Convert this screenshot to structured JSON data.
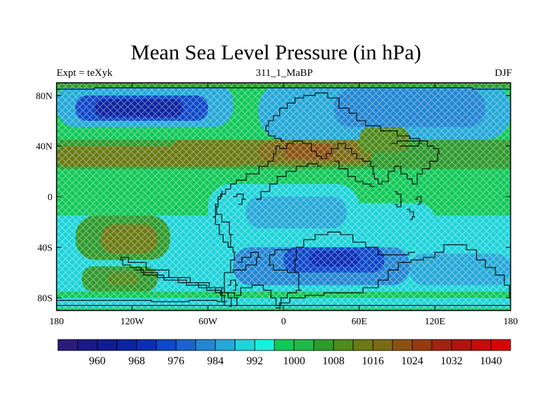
{
  "title": "Mean Sea Level Pressure (in hPa)",
  "subtitle_left": "Expt = teXyk",
  "subtitle_center": "311_1_MaBP",
  "subtitle_right": "DJF",
  "chart_data": {
    "type": "heatmap",
    "title": "Mean Sea Level Pressure (in hPa)",
    "x_ticks": [
      {
        "value": -180,
        "label": "180"
      },
      {
        "value": -120,
        "label": "120W"
      },
      {
        "value": -60,
        "label": "60W"
      },
      {
        "value": 0,
        "label": "0"
      },
      {
        "value": 60,
        "label": "60E"
      },
      {
        "value": 120,
        "label": "120E"
      },
      {
        "value": 180,
        "label": "180"
      }
    ],
    "y_ticks": [
      {
        "value": 80,
        "label": "80N"
      },
      {
        "value": 40,
        "label": "40N"
      },
      {
        "value": 0,
        "label": "0"
      },
      {
        "value": -40,
        "label": "40S"
      },
      {
        "value": -80,
        "label": "80S"
      }
    ],
    "xlim": [
      -180,
      180
    ],
    "ylim": [
      -90,
      90
    ],
    "colorbar": {
      "min": 956,
      "step": 4,
      "labeled_levels": [
        960,
        968,
        976,
        984,
        992,
        1000,
        1008,
        1016,
        1024,
        1032,
        1040
      ],
      "colors": [
        "#2b1a7a",
        "#1a1a86",
        "#121c92",
        "#0d24a0",
        "#0b2eb4",
        "#0f48c8",
        "#1a63cc",
        "#2286d2",
        "#24a8d8",
        "#1ed4da",
        "#18f0dc",
        "#10c858",
        "#20b84a",
        "#2e9a2c",
        "#4e8a1c",
        "#6a7a14",
        "#7a6a14",
        "#8a5210",
        "#963a10",
        "#a02410",
        "#b01410",
        "#c40c0c",
        "#d80404"
      ]
    },
    "regions": [
      {
        "desc": "global background",
        "lon": [
          -180,
          180
        ],
        "lat": [
          -90,
          90
        ],
        "value": 997
      },
      {
        "desc": "southern mid-lat band",
        "lon": [
          -180,
          180
        ],
        "lat": [
          -75,
          -15
        ],
        "value": 990
      },
      {
        "desc": "Antarctic coast",
        "lon": [
          -180,
          180
        ],
        "lat": [
          -88,
          -80
        ],
        "value": 990
      },
      {
        "desc": "north pacific low",
        "lon": [
          -180,
          -40
        ],
        "lat": [
          55,
          90
        ],
        "value": 985
      },
      {
        "desc": "north pacific low core",
        "lon": [
          -165,
          -60
        ],
        "lat": [
          60,
          80
        ],
        "value": 975
      },
      {
        "desc": "north pacific deepest",
        "lon": [
          -150,
          -80
        ],
        "lat": [
          63,
          77
        ],
        "value": 965
      },
      {
        "desc": "north east low",
        "lon": [
          -20,
          180
        ],
        "lat": [
          45,
          90
        ],
        "value": 985
      },
      {
        "desc": "north east low core",
        "lon": [
          40,
          160
        ],
        "lat": [
          55,
          85
        ],
        "value": 982
      },
      {
        "desc": "arctic coast strip",
        "lon": [
          -180,
          180
        ],
        "lat": [
          86,
          90
        ],
        "value": 1006
      },
      {
        "desc": "northern subtropical high belt",
        "lon": [
          -180,
          180
        ],
        "lat": [
          22,
          45
        ],
        "value": 1004
      },
      {
        "desc": "pacific subtropical high",
        "lon": [
          -180,
          -30
        ],
        "lat": [
          24,
          40
        ],
        "value": 1012
      },
      {
        "desc": "atlantic/eurasian high",
        "lon": [
          -90,
          70
        ],
        "lat": [
          25,
          45
        ],
        "value": 1014
      },
      {
        "desc": "central high core",
        "lon": [
          -20,
          60
        ],
        "lat": [
          28,
          43
        ],
        "value": 1018
      },
      {
        "desc": "central highest",
        "lon": [
          0,
          40
        ],
        "lat": [
          30,
          42
        ],
        "value": 1020
      },
      {
        "desc": "asian high extension",
        "lon": [
          60,
          100
        ],
        "lat": [
          35,
          55
        ],
        "value": 1008
      },
      {
        "desc": "east pacific high",
        "lon": [
          160,
          180
        ],
        "lat": [
          25,
          40
        ],
        "value": 1006
      },
      {
        "desc": "southern subtropical high",
        "lon": [
          -165,
          -90
        ],
        "lat": [
          -50,
          -15
        ],
        "value": 1006
      },
      {
        "desc": "southern high core",
        "lon": [
          -145,
          -100
        ],
        "lat": [
          -45,
          -22
        ],
        "value": 1012
      },
      {
        "desc": "south west high",
        "lon": [
          -160,
          -100
        ],
        "lat": [
          -75,
          -55
        ],
        "value": 1004
      },
      {
        "desc": "south west high core",
        "lon": [
          -140,
          -115
        ],
        "lat": [
          -70,
          -60
        ],
        "value": 1009
      },
      {
        "desc": "equatorial trough",
        "lon": [
          -60,
          60
        ],
        "lat": [
          -30,
          10
        ],
        "value": 990
      },
      {
        "desc": "equatorial trough core",
        "lon": [
          -30,
          50
        ],
        "lat": [
          -25,
          0
        ],
        "value": 986
      },
      {
        "desc": "southern low east",
        "lon": [
          -40,
          100
        ],
        "lat": [
          -70,
          -40
        ],
        "value": 980
      },
      {
        "desc": "southern low core",
        "lon": [
          0,
          80
        ],
        "lat": [
          -60,
          -40
        ],
        "value": 972
      },
      {
        "desc": "southern low deep",
        "lon": [
          20,
          60
        ],
        "lat": [
          -55,
          -43
        ],
        "value": 968
      },
      {
        "desc": "south pacific east low",
        "lon": [
          100,
          180
        ],
        "lat": [
          -70,
          -45
        ],
        "value": 986
      },
      {
        "desc": "tropical east",
        "lon": [
          60,
          180
        ],
        "lat": [
          -15,
          15
        ],
        "value": 996
      },
      {
        "desc": "indian ocean low",
        "lon": [
          50,
          120
        ],
        "lat": [
          -35,
          -5
        ],
        "value": 988
      }
    ],
    "coastlines": [
      [
        [
          -43,
          -87
        ],
        [
          -40,
          -80
        ],
        [
          -48,
          -76
        ],
        [
          -60,
          -72
        ],
        [
          -75,
          -68
        ],
        [
          -92,
          -64
        ],
        [
          -108,
          -60
        ],
        [
          -118,
          -56
        ],
        [
          -125,
          -54
        ],
        [
          -130,
          -50
        ],
        [
          -128,
          -48
        ],
        [
          -118,
          -52
        ],
        [
          -100,
          -58
        ],
        [
          -82,
          -64
        ],
        [
          -66,
          -68
        ],
        [
          -52,
          -72
        ],
        [
          -42,
          -76
        ],
        [
          -36,
          -80
        ],
        [
          -38,
          -86
        ]
      ],
      [
        [
          -48,
          -86
        ],
        [
          -46,
          -78
        ],
        [
          -54,
          -74
        ],
        [
          -68,
          -70
        ],
        [
          -86,
          -66
        ],
        [
          -104,
          -62
        ],
        [
          -118,
          -58
        ]
      ],
      [
        [
          -180,
          -82
        ],
        [
          -120,
          -82
        ],
        [
          -90,
          -83
        ],
        [
          -60,
          -82
        ],
        [
          -45,
          -83
        ]
      ],
      [
        [
          -48,
          -83
        ],
        [
          -50,
          -72
        ],
        [
          -44,
          -60
        ],
        [
          -40,
          -50
        ],
        [
          -38,
          -44
        ],
        [
          -42,
          -40
        ],
        [
          -46,
          -36
        ],
        [
          -50,
          -30
        ],
        [
          -52,
          -22
        ],
        [
          -56,
          -16
        ],
        [
          -52,
          -6
        ],
        [
          -52,
          -2
        ],
        [
          -48,
          2
        ],
        [
          -44,
          6
        ],
        [
          -40,
          10
        ],
        [
          -35,
          13
        ],
        [
          -24,
          18
        ],
        [
          -15,
          24
        ],
        [
          -10,
          28
        ],
        [
          -6,
          34
        ],
        [
          -6,
          40
        ],
        [
          0,
          38
        ],
        [
          5,
          42
        ],
        [
          10,
          44
        ],
        [
          20,
          42
        ],
        [
          24,
          36
        ],
        [
          28,
          32
        ],
        [
          32,
          30
        ],
        [
          36,
          34
        ],
        [
          40,
          38
        ],
        [
          46,
          42
        ],
        [
          52,
          38
        ],
        [
          56,
          34
        ],
        [
          60,
          30
        ],
        [
          66,
          28
        ],
        [
          72,
          24
        ],
        [
          70,
          18
        ],
        [
          74,
          14
        ],
        [
          76,
          10
        ],
        [
          80,
          12
        ],
        [
          86,
          20
        ],
        [
          90,
          24
        ],
        [
          96,
          18
        ],
        [
          100,
          14
        ],
        [
          104,
          10
        ],
        [
          108,
          18
        ],
        [
          112,
          22
        ],
        [
          120,
          28
        ],
        [
          124,
          34
        ],
        [
          122,
          38
        ],
        [
          116,
          40
        ],
        [
          112,
          44
        ],
        [
          104,
          46
        ],
        [
          96,
          48
        ],
        [
          84,
          52
        ],
        [
          70,
          56
        ],
        [
          60,
          60
        ],
        [
          56,
          66
        ],
        [
          48,
          70
        ],
        [
          40,
          78
        ],
        [
          30,
          82
        ],
        [
          20,
          80
        ],
        [
          12,
          78
        ],
        [
          6,
          74
        ],
        [
          0,
          70
        ],
        [
          -6,
          64
        ],
        [
          -10,
          60
        ],
        [
          -14,
          56
        ],
        [
          -14,
          52
        ],
        [
          -10,
          48
        ],
        [
          -4,
          46
        ],
        [
          0,
          44
        ]
      ],
      [
        [
          -45,
          -60
        ],
        [
          -35,
          -58
        ],
        [
          -25,
          -54
        ],
        [
          -18,
          -48
        ],
        [
          -22,
          -44
        ],
        [
          -30,
          -48
        ],
        [
          -36,
          -52
        ]
      ],
      [
        [
          -44,
          -40
        ],
        [
          -40,
          -30
        ],
        [
          -46,
          -20
        ],
        [
          -52,
          -14
        ],
        [
          -54,
          -8
        ],
        [
          -50,
          0
        ],
        [
          -48,
          4
        ]
      ],
      [
        [
          -40,
          0
        ],
        [
          -34,
          2
        ],
        [
          -30,
          -2
        ],
        [
          -36,
          -6
        ]
      ],
      [
        [
          -44,
          -70
        ],
        [
          -40,
          -66
        ],
        [
          -36,
          -70
        ],
        [
          -40,
          -74
        ]
      ],
      [
        [
          -38,
          -78
        ],
        [
          -30,
          -72
        ],
        [
          -20,
          -70
        ],
        [
          -12,
          -74
        ],
        [
          -8,
          -80
        ],
        [
          -4,
          -86
        ],
        [
          -2,
          -88
        ]
      ],
      [
        [
          -6,
          -88
        ],
        [
          0,
          -84
        ],
        [
          10,
          -80
        ],
        [
          24,
          -78
        ],
        [
          40,
          -76
        ],
        [
          56,
          -76
        ],
        [
          70,
          -72
        ],
        [
          80,
          -66
        ],
        [
          86,
          -58
        ],
        [
          96,
          -52
        ],
        [
          106,
          -50
        ],
        [
          116,
          -48
        ],
        [
          124,
          -44
        ],
        [
          130,
          -38
        ],
        [
          140,
          -38
        ],
        [
          150,
          -42
        ],
        [
          156,
          -50
        ],
        [
          164,
          -56
        ],
        [
          172,
          -62
        ],
        [
          178,
          -70
        ],
        [
          180,
          -80
        ]
      ],
      [
        [
          -4,
          -86
        ],
        [
          0,
          -80
        ],
        [
          6,
          -76
        ],
        [
          14,
          -74
        ],
        [
          10,
          -60
        ],
        [
          8,
          -50
        ],
        [
          12,
          -40
        ],
        [
          20,
          -34
        ],
        [
          30,
          -30
        ],
        [
          40,
          -28
        ],
        [
          50,
          -30
        ],
        [
          60,
          -36
        ],
        [
          70,
          -40
        ],
        [
          80,
          -46
        ],
        [
          94,
          -46
        ],
        [
          104,
          -44
        ]
      ],
      [
        [
          10,
          -60
        ],
        [
          -4,
          -58
        ],
        [
          -12,
          -54
        ],
        [
          -10,
          -46
        ],
        [
          -4,
          -42
        ],
        [
          6,
          -42
        ]
      ],
      [
        [
          -22,
          -2
        ],
        [
          -14,
          4
        ],
        [
          -8,
          10
        ],
        [
          -2,
          16
        ],
        [
          6,
          20
        ],
        [
          14,
          24
        ],
        [
          24,
          26
        ],
        [
          30,
          24
        ]
      ],
      [
        [
          40,
          28
        ],
        [
          48,
          22
        ],
        [
          54,
          16
        ],
        [
          60,
          12
        ],
        [
          66,
          10
        ],
        [
          72,
          8
        ]
      ],
      [
        [
          88,
          4
        ],
        [
          92,
          2
        ],
        [
          94,
          -4
        ],
        [
          92,
          -8
        ],
        [
          88,
          -6
        ]
      ],
      [
        [
          104,
          -2
        ],
        [
          108,
          0
        ],
        [
          110,
          -4
        ],
        [
          106,
          -6
        ]
      ],
      [
        [
          98,
          -10
        ],
        [
          102,
          -12
        ],
        [
          104,
          -16
        ],
        [
          100,
          -18
        ]
      ],
      [
        [
          85,
          42
        ],
        [
          95,
          44
        ],
        [
          105,
          44
        ],
        [
          110,
          42
        ],
        [
          104,
          40
        ],
        [
          92,
          40
        ]
      ],
      [
        [
          -180,
          85
        ],
        [
          -120,
          86
        ],
        [
          -60,
          86
        ],
        [
          0,
          86
        ],
        [
          60,
          86
        ],
        [
          120,
          86
        ],
        [
          180,
          85
        ]
      ],
      [
        [
          -180,
          -86
        ],
        [
          -60,
          -86
        ],
        [
          0,
          -86
        ],
        [
          60,
          -86
        ],
        [
          120,
          -86
        ],
        [
          180,
          -86
        ]
      ]
    ]
  }
}
